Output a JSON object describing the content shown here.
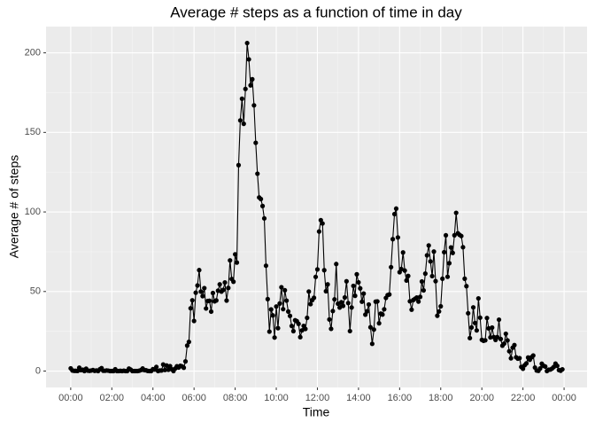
{
  "chart_data": {
    "type": "line",
    "title": "Average # steps as a function of time in day",
    "x_label": "Time",
    "y_label": "Average # of steps",
    "x": [
      0,
      5,
      10,
      15,
      20,
      25,
      30,
      35,
      40,
      45,
      50,
      55,
      60,
      65,
      70,
      75,
      80,
      85,
      90,
      95,
      100,
      105,
      110,
      115,
      120,
      125,
      130,
      135,
      140,
      145,
      150,
      155,
      160,
      165,
      170,
      175,
      180,
      185,
      190,
      195,
      200,
      205,
      210,
      215,
      220,
      225,
      230,
      235,
      240,
      245,
      250,
      255,
      260,
      265,
      270,
      275,
      280,
      285,
      290,
      295,
      300,
      305,
      310,
      315,
      320,
      325,
      330,
      335,
      340,
      345,
      350,
      355,
      360,
      365,
      370,
      375,
      380,
      385,
      390,
      395,
      400,
      405,
      410,
      415,
      420,
      425,
      430,
      435,
      440,
      445,
      450,
      455,
      460,
      465,
      470,
      475,
      480,
      485,
      490,
      495,
      500,
      505,
      510,
      515,
      520,
      525,
      530,
      535,
      540,
      545,
      550,
      555,
      560,
      565,
      570,
      575,
      580,
      585,
      590,
      595,
      600,
      605,
      610,
      615,
      620,
      625,
      630,
      635,
      640,
      645,
      650,
      655,
      660,
      665,
      670,
      675,
      680,
      685,
      690,
      695,
      700,
      705,
      710,
      715,
      720,
      725,
      730,
      735,
      740,
      745,
      750,
      755,
      760,
      765,
      770,
      775,
      780,
      785,
      790,
      795,
      800,
      805,
      810,
      815,
      820,
      825,
      830,
      835,
      840,
      845,
      850,
      855,
      860,
      865,
      870,
      875,
      880,
      885,
      890,
      895,
      900,
      905,
      910,
      915,
      920,
      925,
      930,
      935,
      940,
      945,
      950,
      955,
      960,
      965,
      970,
      975,
      980,
      985,
      990,
      995,
      1000,
      1005,
      1010,
      1015,
      1020,
      1025,
      1030,
      1035,
      1040,
      1045,
      1050,
      1055,
      1060,
      1065,
      1070,
      1075,
      1080,
      1085,
      1090,
      1095,
      1100,
      1105,
      1110,
      1115,
      1120,
      1125,
      1130,
      1135,
      1140,
      1145,
      1150,
      1155,
      1160,
      1165,
      1170,
      1175,
      1180,
      1185,
      1190,
      1195,
      1200,
      1205,
      1210,
      1215,
      1220,
      1225,
      1230,
      1235,
      1240,
      1245,
      1250,
      1255,
      1260,
      1265,
      1270,
      1275,
      1280,
      1285,
      1290,
      1295,
      1300,
      1305,
      1310,
      1315,
      1320,
      1325,
      1330,
      1335,
      1340,
      1345,
      1350,
      1355,
      1360,
      1365,
      1370,
      1375,
      1380,
      1385,
      1390,
      1395,
      1400,
      1405,
      1410,
      1415,
      1420,
      1425,
      1430,
      1435
    ],
    "values": [
      1.72,
      0.34,
      0.13,
      0.15,
      0.08,
      2.09,
      0.53,
      0.87,
      0,
      1.47,
      0.3,
      0.13,
      0.32,
      0.68,
      0.15,
      0.34,
      0,
      1.11,
      1.83,
      0.17,
      0.17,
      0.38,
      0.26,
      0,
      0,
      0,
      1.13,
      0,
      0,
      0.13,
      0,
      0.23,
      0,
      0,
      1.55,
      0.94,
      0,
      0,
      0,
      0,
      0.21,
      0.62,
      1.62,
      0.58,
      0.49,
      0.08,
      0,
      0,
      1.19,
      0.94,
      2.57,
      0,
      0.34,
      0.36,
      4.11,
      0.66,
      3.49,
      0.83,
      3.11,
      1.11,
      0,
      1.57,
      3,
      2.25,
      3.32,
      2.96,
      2.09,
      6.06,
      16.02,
      18.34,
      39.45,
      44.49,
      31.49,
      49.26,
      53.77,
      63.45,
      49.96,
      47.08,
      52.15,
      39.34,
      44.02,
      44.17,
      37.36,
      49.04,
      43.81,
      44.38,
      50.51,
      54.51,
      49.92,
      50.98,
      55.68,
      44.32,
      52.26,
      69.55,
      57.85,
      56.15,
      73.38,
      68.21,
      129.43,
      157.53,
      171.15,
      155.4,
      177.3,
      206.17,
      195.92,
      179.57,
      183.4,
      167.02,
      143.45,
      124.04,
      109.11,
      108.11,
      103.72,
      95.96,
      66.21,
      45.23,
      24.79,
      38.75,
      34.98,
      21.06,
      40.57,
      26.98,
      42.42,
      52.66,
      38.92,
      50.79,
      44.28,
      37.42,
      34.7,
      28.34,
      25.09,
      31.94,
      31.36,
      29.68,
      21.32,
      25.55,
      28.38,
      26.47,
      33.43,
      49.98,
      42.04,
      44.6,
      46.04,
      59.19,
      63.87,
      87.7,
      94.85,
      92.77,
      63.4,
      50.17,
      54.47,
      32.42,
      26.53,
      37.74,
      45.06,
      67.28,
      42.34,
      39.89,
      43.26,
      40.98,
      46.25,
      56.43,
      42.75,
      25.13,
      39.96,
      53.55,
      47.32,
      60.81,
      55.75,
      51.96,
      43.58,
      48.7,
      35.47,
      37.55,
      41.85,
      27.51,
      17.11,
      26.08,
      43.62,
      43.77,
      30.02,
      36.08,
      35.49,
      38.85,
      45.96,
      47.75,
      48.13,
      65.32,
      82.91,
      98.66,
      102.11,
      83.96,
      62.13,
      64.13,
      74.55,
      63.17,
      56.91,
      59.77,
      43.87,
      38.57,
      44.66,
      45.45,
      46.21,
      43.68,
      46.62,
      56.3,
      50.72,
      61.23,
      72.72,
      78.94,
      68.94,
      59.66,
      75.09,
      56.51,
      34.77,
      37.45,
      40.68,
      58.02,
      74.7,
      85.32,
      59.26,
      67.77,
      77.7,
      74.25,
      85.34,
      99.45,
      86.58,
      85.6,
      84.87,
      77.83,
      58.04,
      53.36,
      36.32,
      20.72,
      27.4,
      40.02,
      30.21,
      25.55,
      45.66,
      33.53,
      19.62,
      19.02,
      19.34,
      33.34,
      26.81,
      21.17,
      27.3,
      21.34,
      19.55,
      21.32,
      32.3,
      20.15,
      15.94,
      17.23,
      23.45,
      19.25,
      12.45,
      8.02,
      14.66,
      16.3,
      8.68,
      7.79,
      8.13,
      2.62,
      1.45,
      3.68,
      4.81,
      8.51,
      7.08,
      8.7,
      9.75,
      2.21,
      0.32,
      0.11,
      1.6,
      4.6,
      3.3,
      2.85,
      0,
      0.83,
      0.96,
      1.58,
      2.6,
      4.7,
      3.3,
      0.64,
      0.23,
      1.08
    ],
    "color": "#000000",
    "xlim": [
      -72,
      1507
    ],
    "xticks": [
      {
        "value": 0,
        "label": "00:00"
      },
      {
        "value": 120,
        "label": "02:00"
      },
      {
        "value": 240,
        "label": "04:00"
      },
      {
        "value": 360,
        "label": "06:00"
      },
      {
        "value": 480,
        "label": "08:00"
      },
      {
        "value": 600,
        "label": "10:00"
      },
      {
        "value": 720,
        "label": "12:00"
      },
      {
        "value": 840,
        "label": "14:00"
      },
      {
        "value": 960,
        "label": "16:00"
      },
      {
        "value": 1080,
        "label": "18:00"
      },
      {
        "value": 1200,
        "label": "20:00"
      },
      {
        "value": 1320,
        "label": "22:00"
      },
      {
        "value": 1440,
        "label": "00:00"
      }
    ],
    "ylim": [
      -10.3,
      216.5
    ],
    "yticks": [
      0,
      50,
      100,
      150,
      200
    ],
    "grid": true
  }
}
